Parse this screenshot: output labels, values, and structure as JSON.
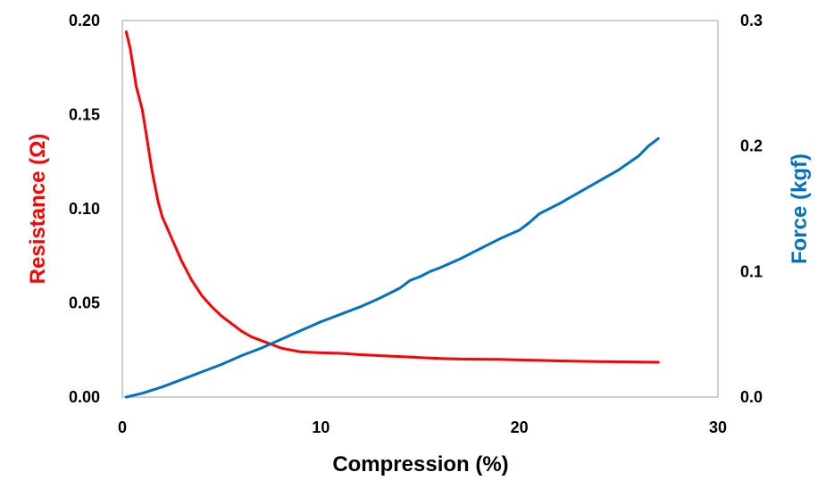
{
  "chart_data": {
    "type": "line",
    "xlabel": "Compression (%)",
    "ylabel": "Resistance (Ω)",
    "y2label": "Force (kgf)",
    "xlim": [
      0,
      30
    ],
    "ylim": [
      0,
      0.2
    ],
    "y2lim": [
      0,
      0.3
    ],
    "x_ticks": [
      "0",
      "10",
      "20",
      "30"
    ],
    "y_ticks": [
      "0.00",
      "0.05",
      "0.10",
      "0.15",
      "0.20"
    ],
    "y2_ticks": [
      "0.0",
      "0.1",
      "0.2",
      "0.3"
    ],
    "grid": false,
    "colors": {
      "resistance": "#ff0000",
      "force": "#0070c0",
      "axis": "#bfbfbf"
    },
    "series": [
      {
        "axis": "left",
        "color": "#ff0000",
        "points": [
          [
            0.2,
            0.194
          ],
          [
            0.4,
            0.185
          ],
          [
            0.7,
            0.165
          ],
          [
            1.0,
            0.153
          ],
          [
            1.2,
            0.14
          ],
          [
            1.5,
            0.12
          ],
          [
            1.8,
            0.104
          ],
          [
            2.0,
            0.096
          ],
          [
            2.5,
            0.084
          ],
          [
            3.0,
            0.072
          ],
          [
            3.5,
            0.062
          ],
          [
            4.0,
            0.054
          ],
          [
            4.5,
            0.048
          ],
          [
            5.0,
            0.043
          ],
          [
            5.5,
            0.039
          ],
          [
            6.0,
            0.035
          ],
          [
            6.5,
            0.032
          ],
          [
            7.0,
            0.03
          ],
          [
            7.5,
            0.028
          ],
          [
            8.0,
            0.026
          ],
          [
            8.5,
            0.025
          ],
          [
            9.0,
            0.024
          ],
          [
            10.0,
            0.0235
          ],
          [
            11.0,
            0.0232
          ],
          [
            12.0,
            0.0225
          ],
          [
            13.0,
            0.022
          ],
          [
            14.0,
            0.0215
          ],
          [
            15.0,
            0.021
          ],
          [
            16.0,
            0.0205
          ],
          [
            17.0,
            0.0202
          ],
          [
            18.0,
            0.0201
          ],
          [
            19.0,
            0.02
          ],
          [
            20.0,
            0.0197
          ],
          [
            21.0,
            0.0195
          ],
          [
            22.0,
            0.0192
          ],
          [
            23.0,
            0.019
          ],
          [
            24.0,
            0.0188
          ],
          [
            25.0,
            0.0187
          ],
          [
            26.0,
            0.0186
          ],
          [
            27.0,
            0.0185
          ]
        ]
      },
      {
        "axis": "right",
        "color": "#0070c0",
        "points": [
          [
            0.2,
            0.0
          ],
          [
            1.0,
            0.003
          ],
          [
            2.0,
            0.008
          ],
          [
            3.0,
            0.014
          ],
          [
            4.0,
            0.02
          ],
          [
            5.0,
            0.026
          ],
          [
            6.0,
            0.033
          ],
          [
            7.0,
            0.039
          ],
          [
            8.0,
            0.046
          ],
          [
            9.0,
            0.053
          ],
          [
            10.0,
            0.06
          ],
          [
            11.0,
            0.066
          ],
          [
            12.0,
            0.072
          ],
          [
            13.0,
            0.079
          ],
          [
            14.0,
            0.087
          ],
          [
            14.5,
            0.093
          ],
          [
            15.0,
            0.096
          ],
          [
            15.5,
            0.1
          ],
          [
            16.0,
            0.103
          ],
          [
            17.0,
            0.11
          ],
          [
            18.0,
            0.118
          ],
          [
            19.0,
            0.126
          ],
          [
            20.0,
            0.133
          ],
          [
            20.5,
            0.139
          ],
          [
            21.0,
            0.146
          ],
          [
            22.0,
            0.154
          ],
          [
            23.0,
            0.163
          ],
          [
            24.0,
            0.172
          ],
          [
            25.0,
            0.181
          ],
          [
            26.0,
            0.192
          ],
          [
            26.5,
            0.2
          ],
          [
            27.0,
            0.206
          ]
        ]
      }
    ]
  }
}
